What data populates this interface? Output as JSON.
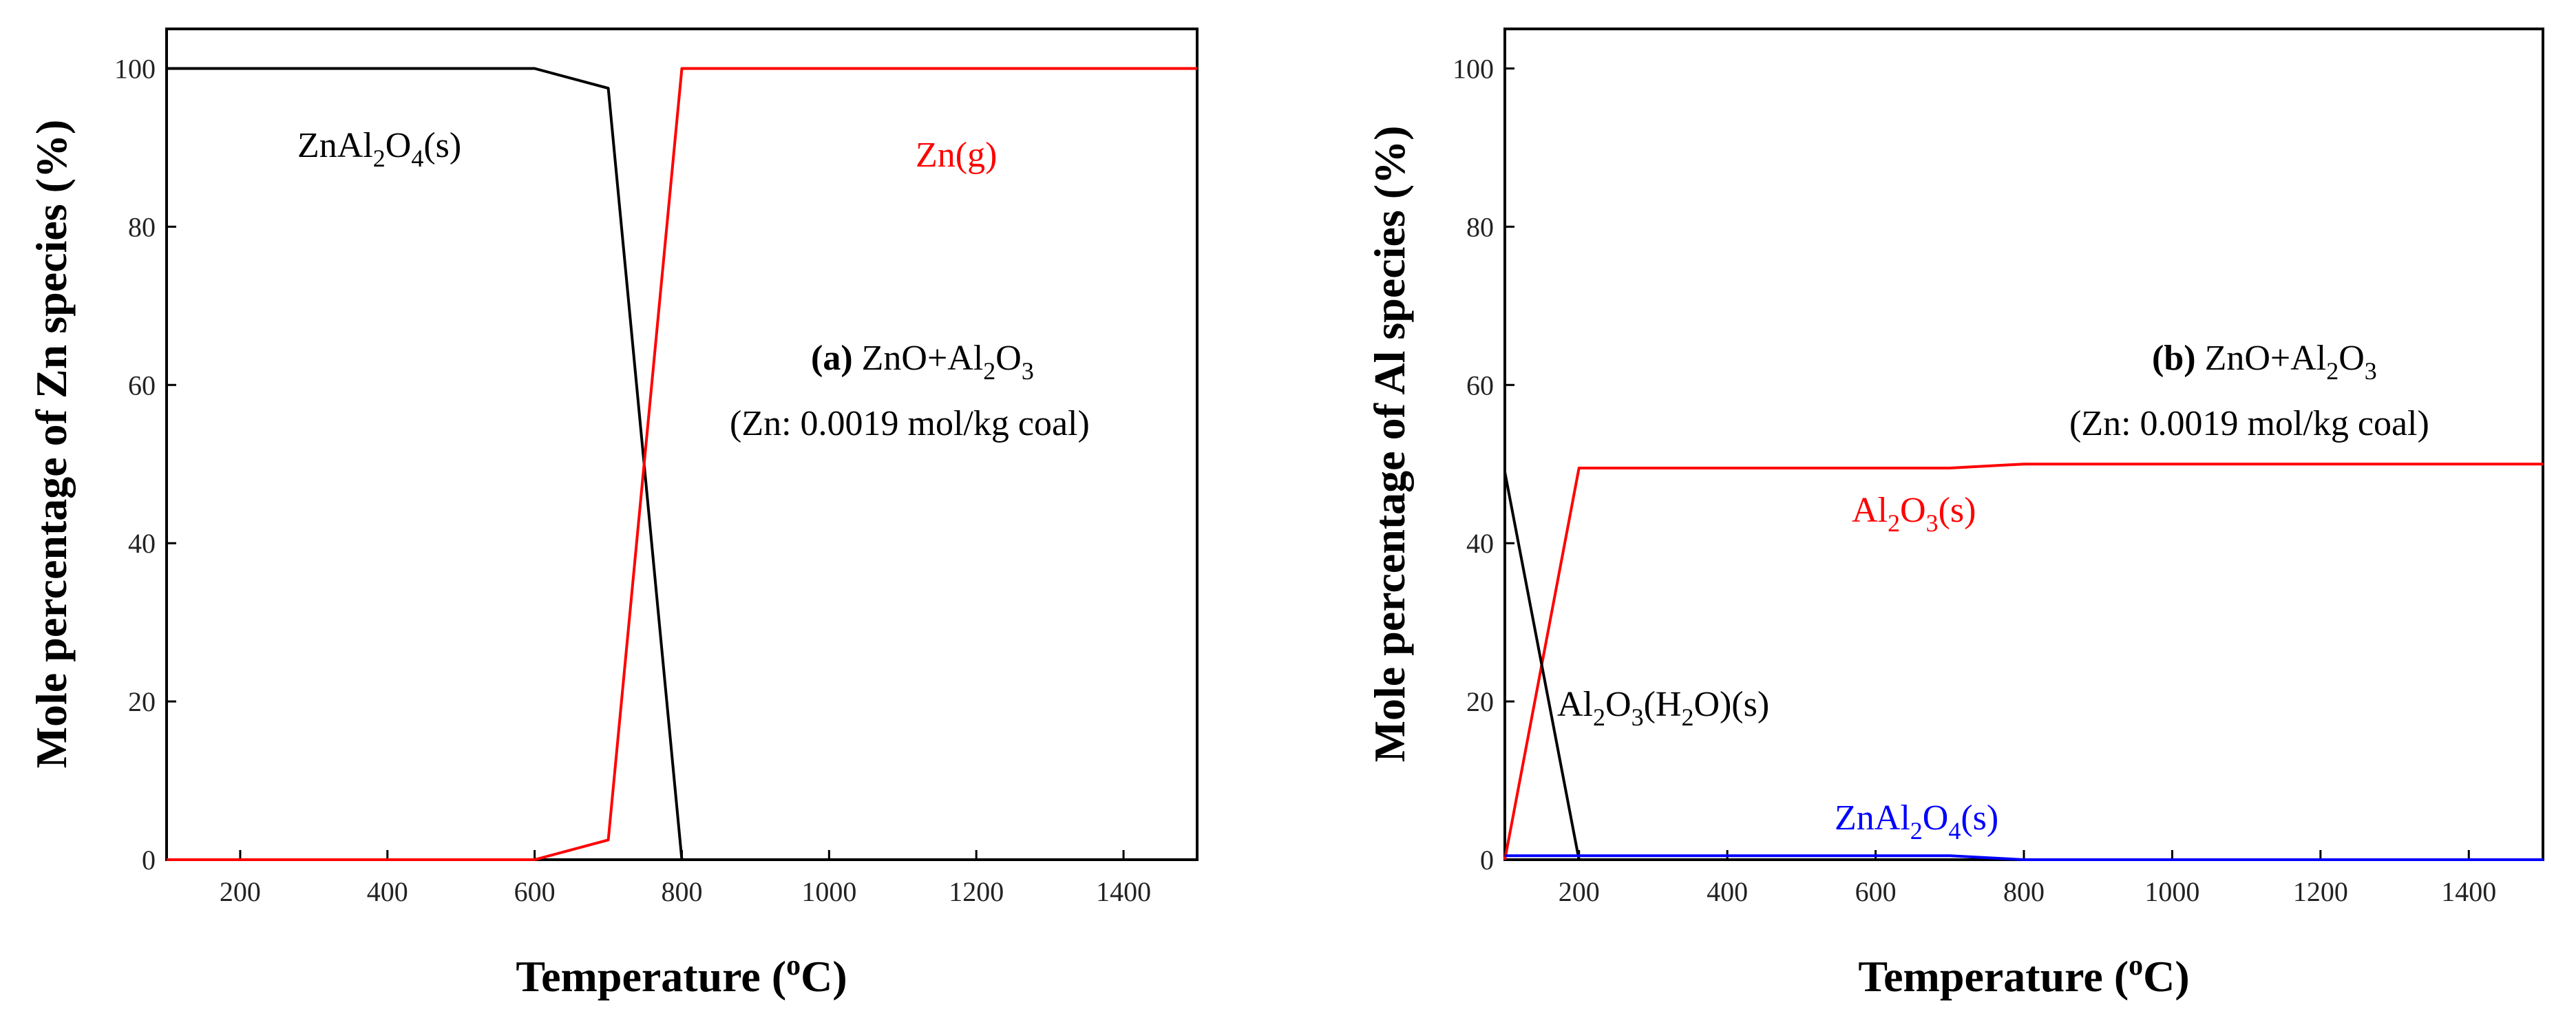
{
  "chart_data": [
    {
      "type": "line",
      "panel": "(a)",
      "note_system": "ZnO+Al2O3",
      "note_condition": "(Zn: 0.0019 mol/kg coal)",
      "xlabel": "Temperature (oC)",
      "ylabel": "Mole percentage of Zn species (%)",
      "xlim": [
        100,
        1500
      ],
      "ylim": [
        0,
        105
      ],
      "xticks": [
        200,
        400,
        600,
        800,
        1000,
        1200,
        1400
      ],
      "yticks": [
        0,
        20,
        40,
        60,
        80,
        100
      ],
      "series": [
        {
          "name": "ZnAl2O4(s)",
          "color": "#000000",
          "x": [
            100,
            600,
            700,
            800,
            1500
          ],
          "y": [
            100,
            100,
            97.5,
            0,
            0
          ]
        },
        {
          "name": "Zn(g)",
          "color": "#ff0000",
          "x": [
            100,
            600,
            700,
            800,
            1500
          ],
          "y": [
            0,
            0,
            2.5,
            100,
            100
          ]
        }
      ]
    },
    {
      "type": "line",
      "panel": "(b)",
      "note_system": "ZnO+Al2O3",
      "note_condition": "(Zn: 0.0019 mol/kg coal)",
      "xlabel": "Temperature (oC)",
      "ylabel": "Mole percentage of Al species (%)",
      "xlim": [
        100,
        1500
      ],
      "ylim": [
        0,
        105
      ],
      "xticks": [
        200,
        400,
        600,
        800,
        1000,
        1200,
        1400
      ],
      "yticks": [
        0,
        20,
        40,
        60,
        80,
        100
      ],
      "series": [
        {
          "name": "Al2O3(s)",
          "color": "#ff0000",
          "x": [
            100,
            200,
            700,
            800,
            1500
          ],
          "y": [
            0,
            49.5,
            49.5,
            50,
            50
          ]
        },
        {
          "name": "Al2O3(H2O)(s)",
          "color": "#000000",
          "x": [
            100,
            200,
            1500
          ],
          "y": [
            49,
            0,
            0
          ]
        },
        {
          "name": "ZnAl2O4(s)",
          "color": "#0000ff",
          "x": [
            100,
            700,
            800,
            1500
          ],
          "y": [
            0.5,
            0.5,
            0,
            0
          ]
        }
      ]
    }
  ]
}
